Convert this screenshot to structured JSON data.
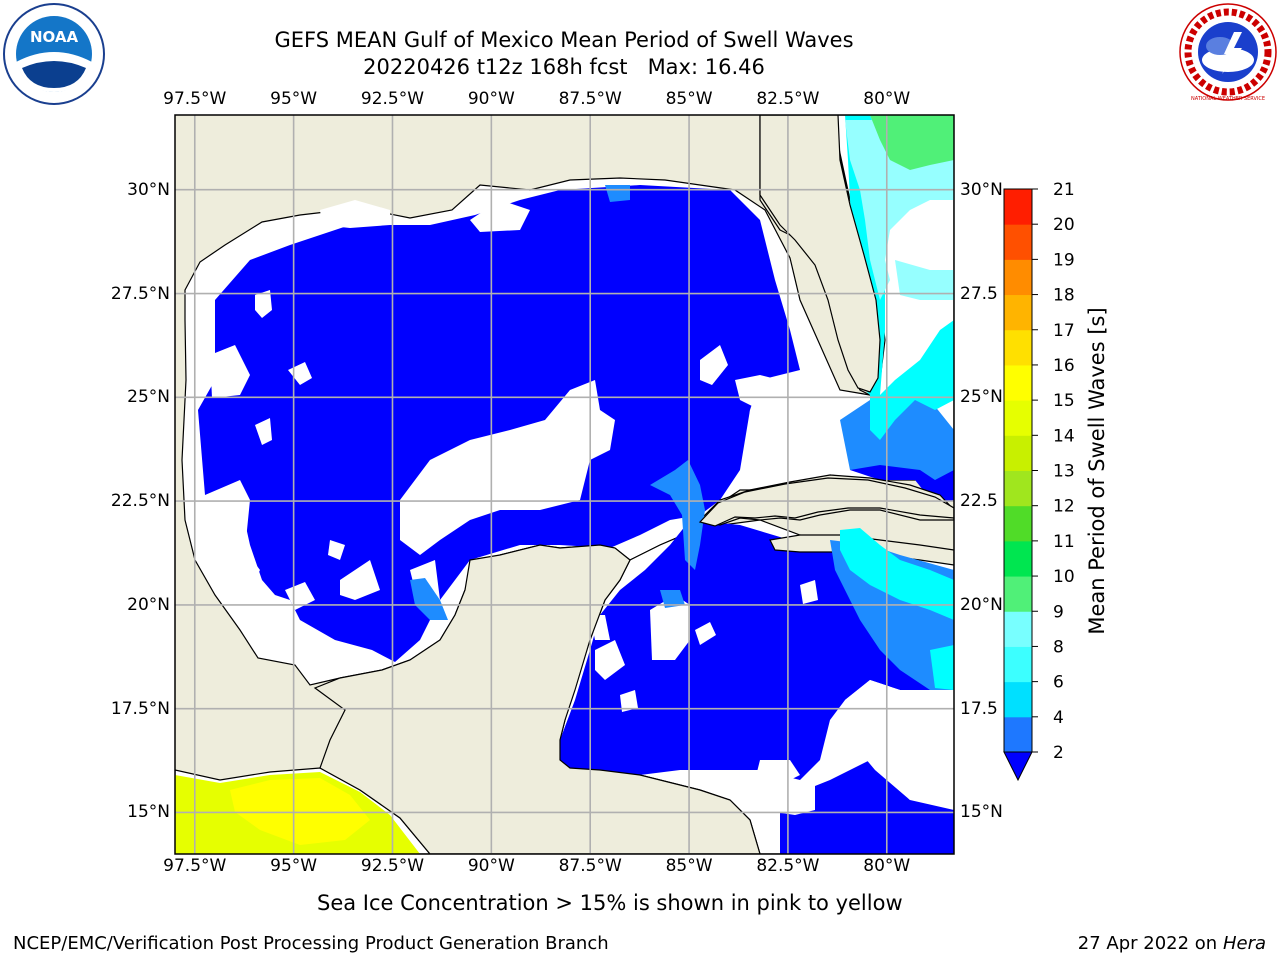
{
  "header": {
    "title_line1": "GEFS MEAN Gulf of Mexico Mean Period of Swell Waves",
    "title_line2": "20220426 t12z 168h fcst   Max: 16.46"
  },
  "logos": {
    "noaa_text": "NOAA",
    "nws_text": "NATIONAL WEATHER SERVICE"
  },
  "map": {
    "lon_labels": [
      "97.5°W",
      "95°W",
      "92.5°W",
      "90°W",
      "87.5°W",
      "85°W",
      "82.5°W",
      "80°W"
    ],
    "lat_labels_left": [
      "30°N",
      "27.5°N",
      "25°N",
      "22.5°N",
      "20°N",
      "17.5°N",
      "15°N"
    ],
    "lat_labels_right": [
      "30°N",
      "27.5",
      "25°N",
      "22.5",
      "20°N",
      "17.5",
      "15°N"
    ],
    "extent": {
      "lon_min": -98,
      "lon_max": -78.3,
      "lat_min": 14,
      "lat_max": 31.8
    },
    "colors": {
      "land": "#eeeddc",
      "ocean_low": "#0000ff",
      "ocean_mid": "#1e8cff",
      "cyan": "#00ffff",
      "light_cyan": "#96ffff",
      "green": "#50f078",
      "ice_yellow": "#ffff00",
      "ice_yellowgreen": "#e6ff00",
      "gridline": "#b0b0b0"
    }
  },
  "colorbar": {
    "label": "Mean Period of Swell Waves [s]",
    "ticks": [
      "2",
      "4",
      "6",
      "8",
      "9",
      "10",
      "11",
      "12",
      "13",
      "14",
      "15",
      "16",
      "17",
      "18",
      "19",
      "20",
      "21"
    ],
    "colors": [
      "#1e78ff",
      "#00e0ff",
      "#3cffff",
      "#78ffff",
      "#a0ffff",
      "#50f078",
      "#00e650",
      "#50dc28",
      "#a0e61e",
      "#c8f000",
      "#e6ff00",
      "#ffff00",
      "#ffe000",
      "#ffb400",
      "#ff8c00",
      "#ff5000",
      "#ff1e00",
      "#ff0000"
    ],
    "under_color": "#0000ff"
  },
  "footer": {
    "note": "Sea Ice Concentration > 15% is shown in pink to yellow",
    "credit": "NCEP/EMC/Verification Post Processing Product Generation Branch",
    "date": "27 Apr 2022 on",
    "host": "Hera"
  }
}
